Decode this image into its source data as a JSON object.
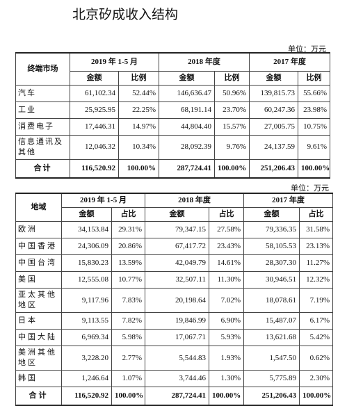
{
  "title": "北京矽成收入结构",
  "table1": {
    "unit": "单位：万元",
    "header": [
      "终端市场",
      "2019 年 1-5 月",
      "2018 年度",
      "2017 年度"
    ],
    "subheader": [
      "金额",
      "比例",
      "金额",
      "比例",
      "金额",
      "比例"
    ],
    "rows": [
      [
        "汽车",
        "61,102.34",
        "52.44%",
        "146,636.47",
        "50.96%",
        "139,815.73",
        "55.66%"
      ],
      [
        "工业",
        "25,925.95",
        "22.25%",
        "68,191.14",
        "23.70%",
        "60,247.36",
        "23.98%"
      ],
      [
        "消费电子",
        "17,446.31",
        "14.97%",
        "44,804.40",
        "15.57%",
        "27,005.75",
        "10.75%"
      ],
      [
        "信息通讯及其他",
        "12,046.32",
        "10.34%",
        "28,092.39",
        "9.76%",
        "24,137.59",
        "9.61%"
      ]
    ],
    "total": [
      "合计",
      "116,520.92",
      "100.00%",
      "287,724.41",
      "100.00%",
      "251,206.43",
      "100.00%"
    ]
  },
  "table2": {
    "unit": "单位：万元",
    "header": [
      "地域",
      "2019 年 1-5 月",
      "2018 年度",
      "2017 年度"
    ],
    "subheader": [
      "金额",
      "占比",
      "金额",
      "占比",
      "金额",
      "占比"
    ],
    "rows": [
      [
        "欧洲",
        "34,153.84",
        "29.31%",
        "79,347.15",
        "27.58%",
        "79,336.35",
        "31.58%"
      ],
      [
        "中国香港",
        "24,306.09",
        "20.86%",
        "67,417.72",
        "23.43%",
        "58,105.53",
        "23.13%"
      ],
      [
        "中国台湾",
        "15,830.23",
        "13.59%",
        "42,049.79",
        "14.61%",
        "28,307.30",
        "11.27%"
      ],
      [
        "美国",
        "12,555.08",
        "10.77%",
        "32,507.11",
        "11.30%",
        "30,946.51",
        "12.32%"
      ],
      [
        "亚太其他地区",
        "9,117.96",
        "7.83%",
        "20,198.64",
        "7.02%",
        "18,078.61",
        "7.19%"
      ],
      [
        "日本",
        "9,113.55",
        "7.82%",
        "19,846.99",
        "6.90%",
        "15,487.07",
        "6.17%"
      ],
      [
        "中国大陆",
        "6,969.34",
        "5.98%",
        "17,067.71",
        "5.93%",
        "13,621.68",
        "5.42%"
      ],
      [
        "美洲其他地区",
        "3,228.20",
        "2.77%",
        "5,544.83",
        "1.93%",
        "1,547.50",
        "0.62%"
      ],
      [
        "韩国",
        "1,246.64",
        "1.07%",
        "3,744.46",
        "1.30%",
        "5,775.89",
        "2.30%"
      ]
    ],
    "total": [
      "合计",
      "116,520.92",
      "100.00%",
      "287,724.41",
      "100.00%",
      "251,206.43",
      "100.00%"
    ]
  }
}
